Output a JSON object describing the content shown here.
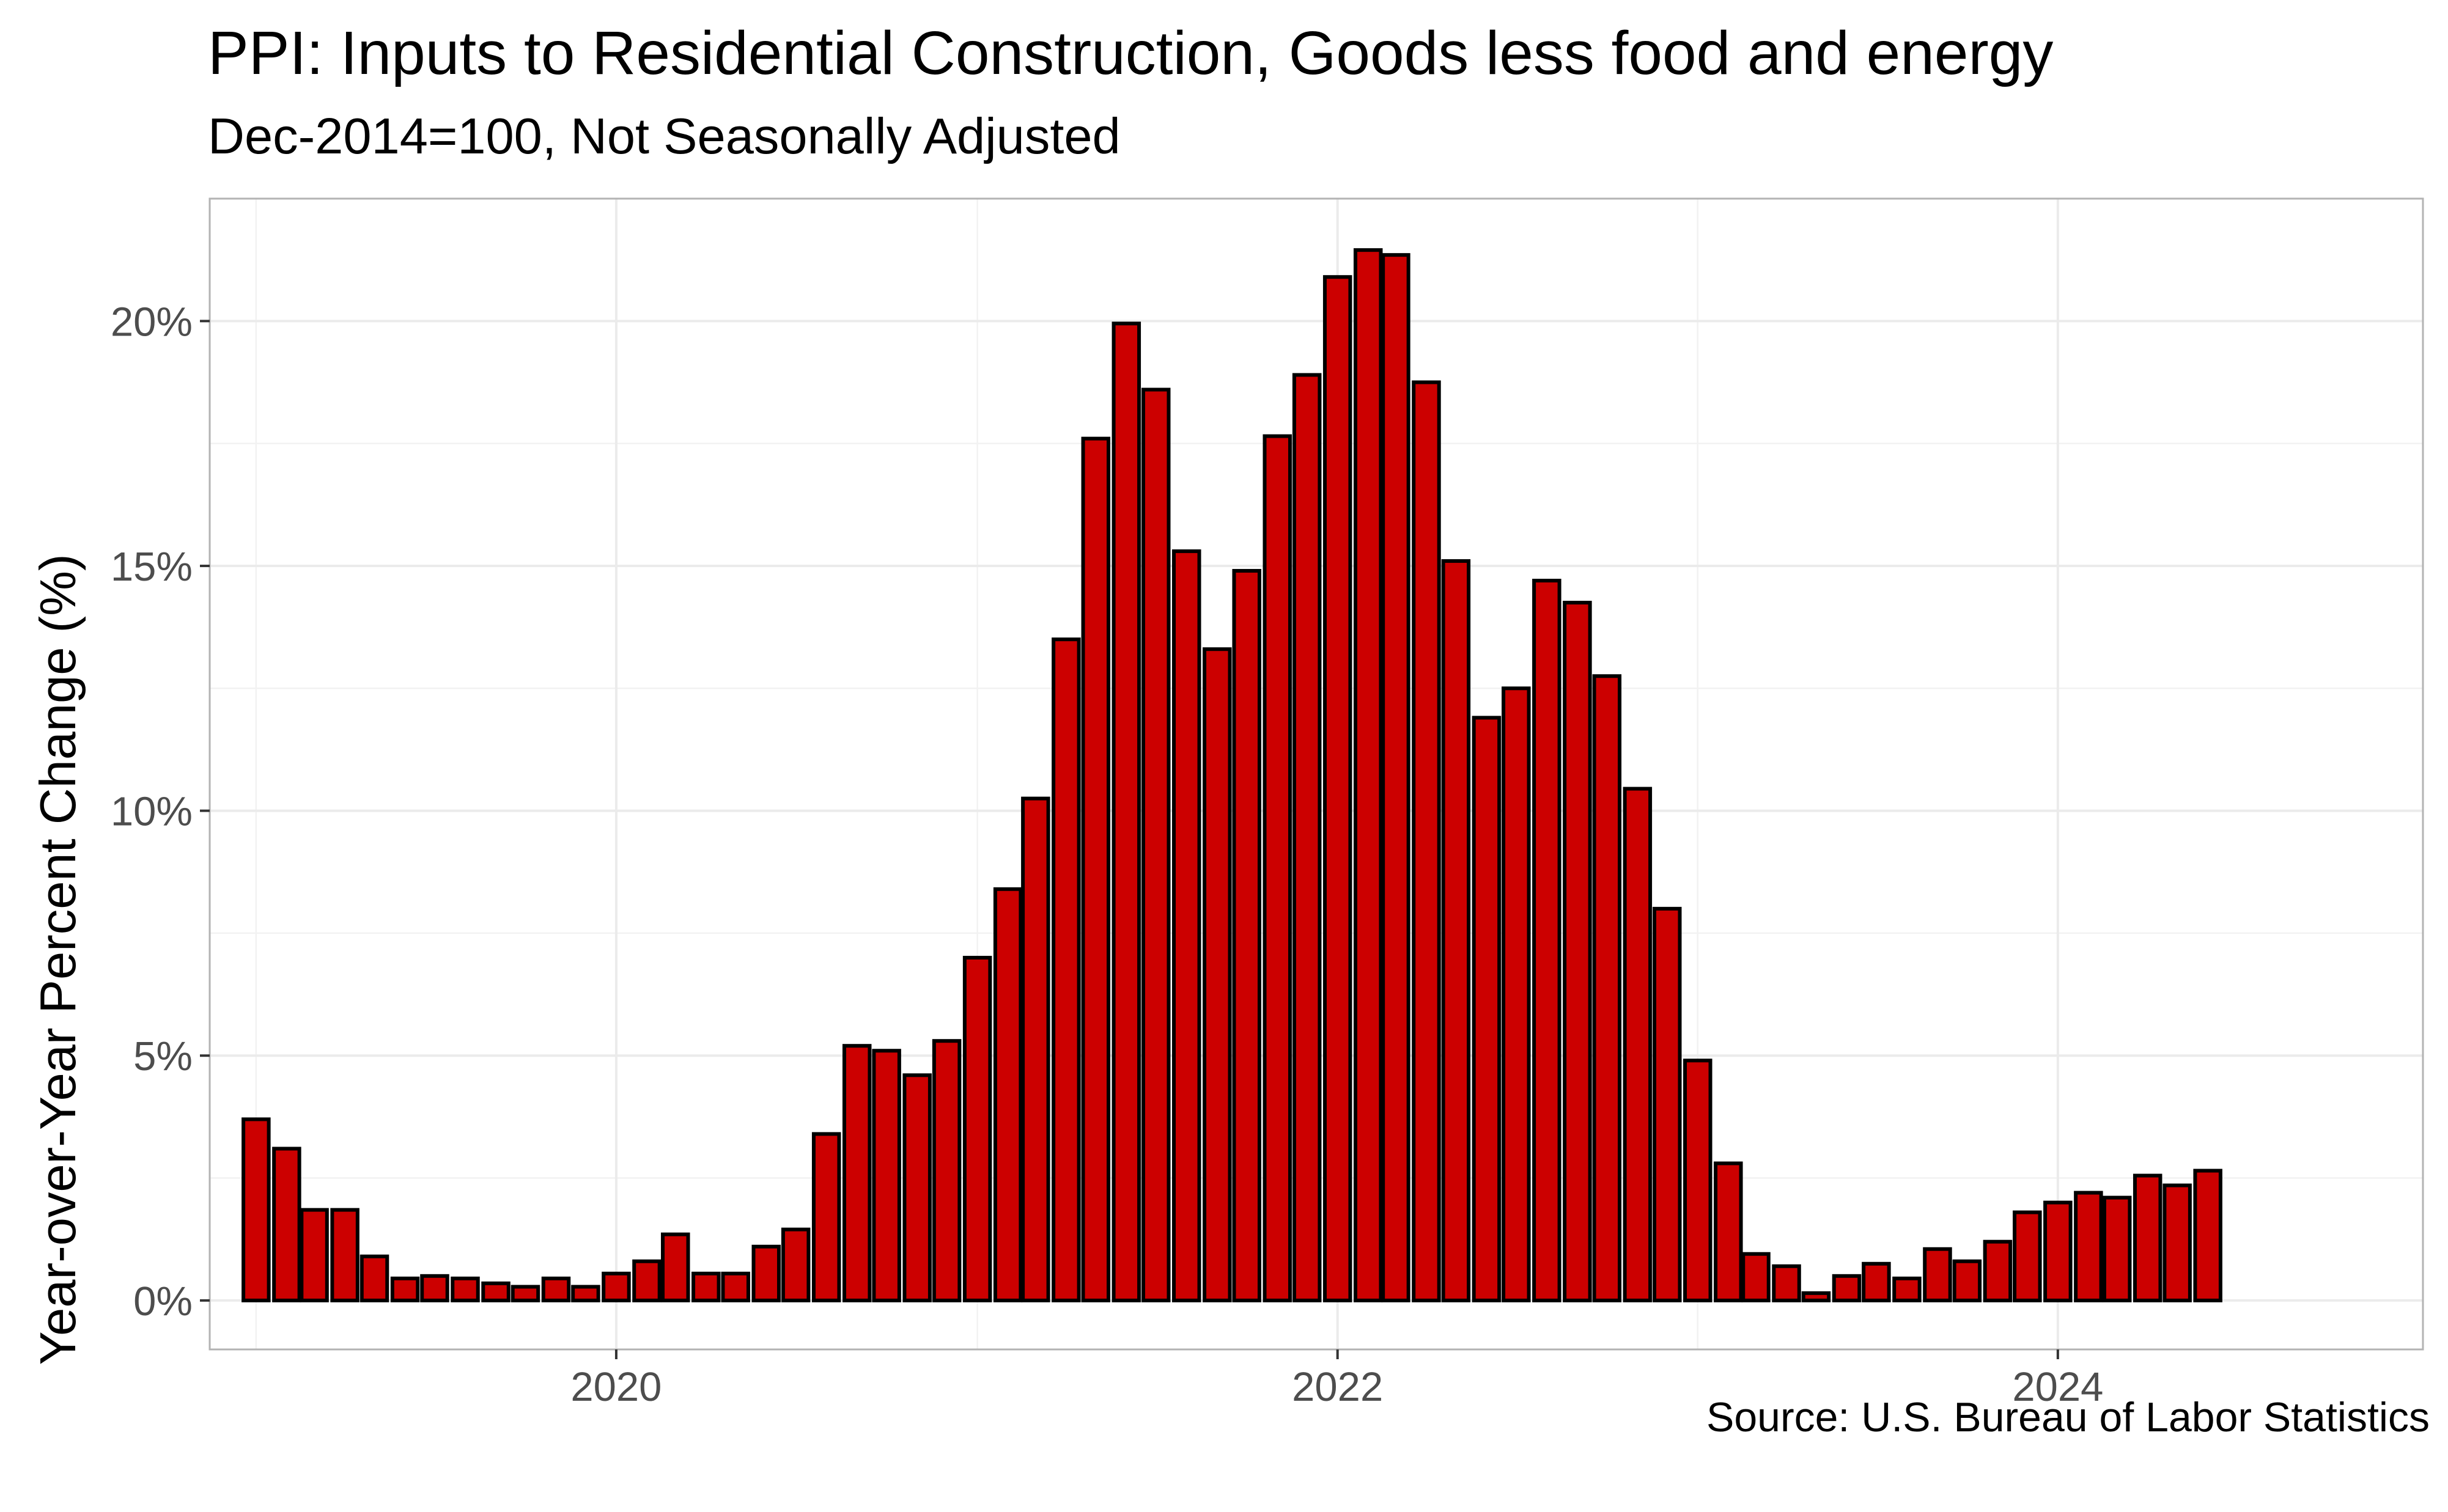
{
  "chart_data": {
    "type": "bar",
    "title": "PPI: Inputs to Residential Construction, Goods less food and energy",
    "subtitle": "Dec-2014=100, Not Seasonally Adjusted",
    "caption": "Source: U.S. Bureau of Labor Statistics",
    "xlabel": "",
    "ylabel": "Year-over-Year Percent Change (%)",
    "x_axis": {
      "type": "date",
      "ticks": [
        {
          "label": "2020",
          "date": "2020-01-01"
        },
        {
          "label": "2022",
          "date": "2022-01-01"
        },
        {
          "label": "2024",
          "date": "2024-01-01"
        }
      ]
    },
    "y_axis": {
      "ticks": [
        {
          "label": "0%",
          "value": 0
        },
        {
          "label": "5%",
          "value": 5
        },
        {
          "label": "10%",
          "value": 10
        },
        {
          "label": "15%",
          "value": 15
        },
        {
          "label": "20%",
          "value": 20
        }
      ]
    },
    "ylim": [
      -1.0,
      22.5
    ],
    "xlim": [
      "2018-11-15",
      "2025-01-05"
    ],
    "grid": true,
    "legend": "none",
    "colors": {
      "bar_fill": "#cc0000",
      "bar_outline": "#000000",
      "grid": "#ebebeb",
      "panel_border": "#b3b3b3"
    },
    "series": [
      {
        "x": [
          "2019-01-01",
          "2019-02-01",
          "2019-03-01",
          "2019-04-01",
          "2019-05-01",
          "2019-06-01",
          "2019-07-01",
          "2019-08-01",
          "2019-09-01",
          "2019-10-01",
          "2019-11-01",
          "2019-12-01",
          "2020-01-01",
          "2020-02-01",
          "2020-03-01",
          "2020-04-01",
          "2020-05-01",
          "2020-06-01",
          "2020-07-01",
          "2020-08-01",
          "2020-09-01",
          "2020-10-01",
          "2020-11-01",
          "2020-12-01",
          "2021-01-01",
          "2021-02-01",
          "2021-03-01",
          "2021-04-01",
          "2021-05-01",
          "2021-06-01",
          "2021-07-01",
          "2021-08-01",
          "2021-09-01",
          "2021-10-01",
          "2021-11-01",
          "2021-12-01",
          "2022-01-01",
          "2022-02-01",
          "2022-03-01",
          "2022-04-01",
          "2022-05-01",
          "2022-06-01",
          "2022-07-01",
          "2022-08-01",
          "2022-09-01",
          "2022-10-01",
          "2022-11-01",
          "2022-12-01",
          "2023-01-01",
          "2023-02-01",
          "2023-03-01",
          "2023-04-01",
          "2023-05-01",
          "2023-06-01",
          "2023-07-01",
          "2023-08-01",
          "2023-09-01",
          "2023-10-01",
          "2023-11-01",
          "2023-12-01",
          "2024-01-01",
          "2024-02-01",
          "2024-03-01",
          "2024-04-01",
          "2024-05-01",
          "2024-06-01"
        ],
        "values": [
          3.7,
          3.1,
          1.85,
          1.85,
          0.9,
          0.45,
          0.5,
          0.45,
          0.35,
          0.28,
          0.45,
          0.28,
          0.55,
          0.8,
          1.35,
          0.55,
          0.55,
          1.1,
          1.45,
          3.4,
          5.2,
          5.1,
          4.6,
          5.3,
          7.0,
          8.4,
          10.25,
          13.5,
          17.6,
          19.95,
          18.6,
          15.3,
          13.3,
          14.9,
          17.65,
          18.9,
          20.9,
          21.45,
          21.35,
          18.75,
          15.1,
          11.9,
          12.5,
          14.7,
          14.25,
          12.75,
          10.45,
          8.0,
          4.9,
          2.8,
          0.95,
          0.7,
          0.15,
          0.5,
          0.75,
          0.45,
          1.05,
          0.8,
          1.2,
          1.8,
          2.0,
          2.2,
          2.1,
          2.55,
          2.35,
          2.65
        ]
      }
    ]
  }
}
